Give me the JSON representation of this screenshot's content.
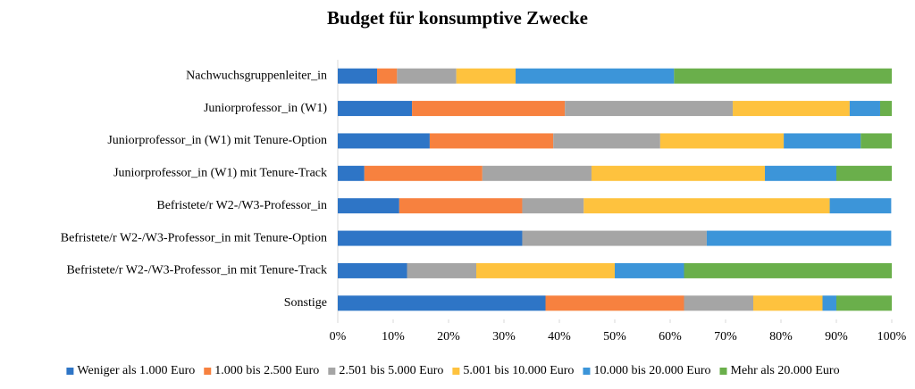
{
  "chart_data": {
    "type": "stacked_barh",
    "title": "Budget für konsumptive Zwecke",
    "categories": [
      "Nachwuchsgruppenleiter_in",
      "Juniorprofessor_in (W1)",
      "Juniorprofessor_in (W1) mit Tenure-Option",
      "Juniorprofessor_in (W1) mit Tenure-Track",
      "Befristete/r W2-/W3-Professor_in",
      "Befristete/r W2-/W3-Professor_in mit Tenure-Option",
      "Befristete/r W2-/W3-Professor_in mit Tenure-Track",
      "Sonstige"
    ],
    "series": [
      {
        "name": "Weniger als 1.000 Euro",
        "color": "#2e75c6",
        "values": [
          7.1,
          13.4,
          16.6,
          4.8,
          11.1,
          33.3,
          12.5,
          37.5
        ]
      },
      {
        "name": "1.000 bis 2.500 Euro",
        "color": "#f7813f",
        "values": [
          3.6,
          27.6,
          22.3,
          21.3,
          22.2,
          0,
          0,
          25
        ]
      },
      {
        "name": "2.501 bis 5.000 Euro",
        "color": "#a5a5a5",
        "values": [
          10.7,
          30.3,
          19.3,
          19.7,
          11.1,
          33.3,
          12.5,
          12.5
        ]
      },
      {
        "name": "5.001 bis 10.000 Euro",
        "color": "#fec23e",
        "values": [
          10.7,
          21.1,
          22.3,
          31.3,
          44.4,
          0,
          25,
          12.5
        ]
      },
      {
        "name": "10.000 bis 20.000 Euro",
        "color": "#3c95d9",
        "values": [
          28.6,
          5.5,
          13.9,
          12.9,
          11.1,
          33.3,
          12.5,
          2.5
        ]
      },
      {
        "name": "Mehr als 20.000 Euro",
        "color": "#6aaf4b",
        "values": [
          39.3,
          2.1,
          5.6,
          10.0,
          0,
          0,
          37.5,
          10
        ]
      }
    ],
    "xlim": [
      0,
      100
    ],
    "xticks": [
      {
        "value": 0,
        "label": "0%"
      },
      {
        "value": 10,
        "label": "10%"
      },
      {
        "value": 20,
        "label": "20%"
      },
      {
        "value": 30,
        "label": "30%"
      },
      {
        "value": 40,
        "label": "40%"
      },
      {
        "value": 50,
        "label": "50%"
      },
      {
        "value": 60,
        "label": "60%"
      },
      {
        "value": 70,
        "label": "70%"
      },
      {
        "value": 80,
        "label": "80%"
      },
      {
        "value": 90,
        "label": "90%"
      },
      {
        "value": 100,
        "label": "100%"
      }
    ],
    "grid": false,
    "legend": "bottom"
  }
}
